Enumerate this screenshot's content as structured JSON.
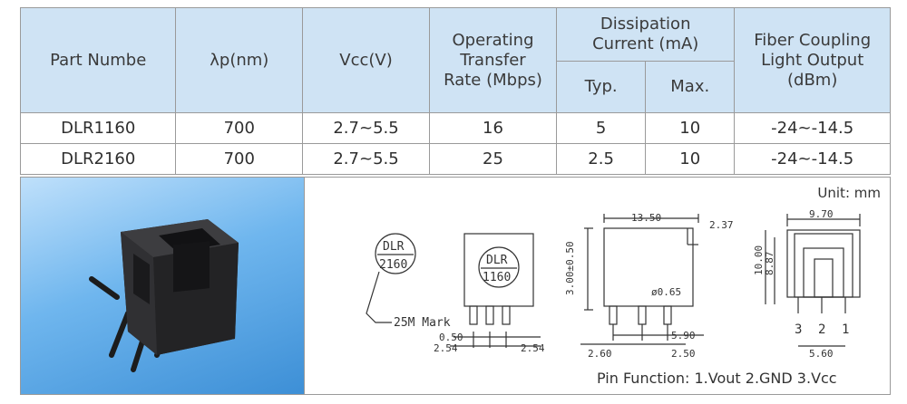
{
  "table": {
    "headers": {
      "part": "Part Numbe",
      "wavelength": "λp(nm)",
      "vcc": "Vcc(V)",
      "rate": [
        "Operating",
        "Transfer",
        "Rate (Mbps)"
      ],
      "current": [
        "Dissipation",
        "Current (mA)"
      ],
      "typ": "Typ.",
      "max": "Max.",
      "fiber": [
        "Fiber Coupling",
        "Light Output",
        "(dBm)"
      ]
    },
    "rows": [
      {
        "part": "DLR1160",
        "wavelength": "700",
        "vcc": "2.7~5.5",
        "rate": "16",
        "typ": "5",
        "max": "10",
        "fiber": "-24~-14.5"
      },
      {
        "part": "DLR2160",
        "wavelength": "700",
        "vcc": "2.7~5.5",
        "rate": "25",
        "typ": "2.5",
        "max": "10",
        "fiber": "-24~-14.5"
      }
    ]
  },
  "drawing": {
    "unit": "Unit:  mm",
    "pin_function": "Pin Function: 1.Vout   2.GND   3.Vcc",
    "mark_top": "DLR",
    "mark_bottom": "2160",
    "body_mark_top": "DLR",
    "body_mark_bottom": "1160",
    "mark_note": "25M Mark",
    "dims": {
      "d050": "0.50",
      "d254a": "2.54",
      "d254b": "2.54",
      "d1350": "13.50",
      "d237": "2.37",
      "d300": "3.00±0.50",
      "d065": "ø0.65",
      "d590": "5.90",
      "d260": "2.60",
      "d250": "2.50",
      "d970": "9.70",
      "d1000": "10.00",
      "d887": "8.87",
      "d560": "5.60",
      "pin3": "3",
      "pin2": "2",
      "pin1": "1"
    }
  }
}
